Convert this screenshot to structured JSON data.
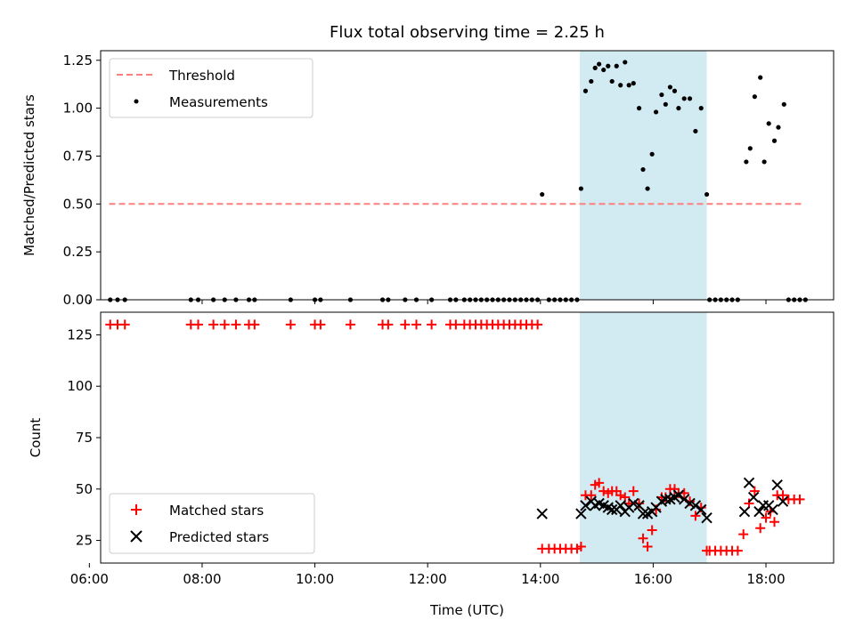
{
  "chart_data": [
    {
      "type": "scatter",
      "title": "Flux total observing time = 2.25 h",
      "xlabel": "",
      "ylabel": "Matched/Predicted stars",
      "xlim": [
        6.2,
        19.2
      ],
      "ylim": [
        0,
        1.3
      ],
      "yticks": [
        0,
        0.25,
        0.5,
        0.75,
        1.0,
        1.25
      ],
      "ytick_labels": [
        "0.00",
        "0.25",
        "0.50",
        "0.75",
        "1.00",
        "1.25"
      ],
      "shaded_span": [
        14.7,
        16.95
      ],
      "shade_color": "#add8e6",
      "legend": {
        "placement": "upper-left",
        "entries": [
          "Threshold",
          "Measurements"
        ]
      },
      "series": [
        {
          "name": "Threshold",
          "kind": "dashed-line",
          "color": "#ff7f7f",
          "x": [
            6.35,
            18.65
          ],
          "y": [
            0.5,
            0.5
          ]
        },
        {
          "name": "Measurements",
          "kind": "points",
          "color": "#000000",
          "points": [
            [
              6.37,
              0
            ],
            [
              6.5,
              0
            ],
            [
              6.63,
              0
            ],
            [
              7.8,
              0
            ],
            [
              7.93,
              0
            ],
            [
              8.2,
              0
            ],
            [
              8.4,
              0
            ],
            [
              8.6,
              0
            ],
            [
              8.83,
              0
            ],
            [
              8.93,
              0
            ],
            [
              9.57,
              0
            ],
            [
              10.0,
              0
            ],
            [
              10.1,
              0
            ],
            [
              10.63,
              0
            ],
            [
              11.2,
              0
            ],
            [
              11.3,
              0
            ],
            [
              11.6,
              0
            ],
            [
              11.8,
              0
            ],
            [
              12.07,
              0
            ],
            [
              12.4,
              0
            ],
            [
              12.5,
              0
            ],
            [
              12.65,
              0
            ],
            [
              12.75,
              0
            ],
            [
              12.85,
              0
            ],
            [
              12.95,
              0
            ],
            [
              13.05,
              0
            ],
            [
              13.15,
              0
            ],
            [
              13.25,
              0
            ],
            [
              13.35,
              0
            ],
            [
              13.45,
              0
            ],
            [
              13.55,
              0
            ],
            [
              13.65,
              0
            ],
            [
              13.75,
              0
            ],
            [
              13.85,
              0
            ],
            [
              13.95,
              0
            ],
            [
              14.03,
              0.55
            ],
            [
              14.15,
              0
            ],
            [
              14.25,
              0
            ],
            [
              14.35,
              0
            ],
            [
              14.45,
              0
            ],
            [
              14.55,
              0
            ],
            [
              14.65,
              0
            ],
            [
              14.72,
              0.58
            ],
            [
              14.8,
              1.09
            ],
            [
              14.9,
              1.14
            ],
            [
              14.97,
              1.21
            ],
            [
              15.04,
              1.23
            ],
            [
              15.12,
              1.2
            ],
            [
              15.2,
              1.22
            ],
            [
              15.27,
              1.14
            ],
            [
              15.35,
              1.22
            ],
            [
              15.42,
              1.12
            ],
            [
              15.5,
              1.24
            ],
            [
              15.57,
              1.12
            ],
            [
              15.65,
              1.13
            ],
            [
              15.75,
              1.0
            ],
            [
              15.82,
              0.68
            ],
            [
              15.9,
              0.58
            ],
            [
              15.98,
              0.76
            ],
            [
              16.05,
              0.98
            ],
            [
              16.15,
              1.07
            ],
            [
              16.22,
              1.02
            ],
            [
              16.3,
              1.11
            ],
            [
              16.38,
              1.09
            ],
            [
              16.45,
              1.0
            ],
            [
              16.55,
              1.05
            ],
            [
              16.65,
              1.05
            ],
            [
              16.75,
              0.88
            ],
            [
              16.85,
              1.0
            ],
            [
              16.95,
              0.55
            ],
            [
              17.0,
              0
            ],
            [
              17.1,
              0
            ],
            [
              17.2,
              0
            ],
            [
              17.3,
              0
            ],
            [
              17.4,
              0
            ],
            [
              17.5,
              0
            ],
            [
              17.65,
              0.72
            ],
            [
              17.72,
              0.79
            ],
            [
              17.8,
              1.06
            ],
            [
              17.9,
              1.16
            ],
            [
              17.97,
              0.72
            ],
            [
              18.05,
              0.92
            ],
            [
              18.15,
              0.83
            ],
            [
              18.22,
              0.9
            ],
            [
              18.32,
              1.02
            ],
            [
              18.4,
              0
            ],
            [
              18.5,
              0
            ],
            [
              18.6,
              0
            ],
            [
              18.7,
              0
            ]
          ]
        }
      ]
    },
    {
      "type": "scatter",
      "title": "",
      "xlabel": "Time (UTC)",
      "ylabel": "Count",
      "xlim": [
        6.2,
        19.2
      ],
      "ylim": [
        14,
        136
      ],
      "xticks": [
        6,
        8,
        10,
        12,
        14,
        16,
        18
      ],
      "xtick_labels": [
        "06:00",
        "08:00",
        "10:00",
        "12:00",
        "14:00",
        "16:00",
        "18:00"
      ],
      "yticks": [
        25,
        50,
        75,
        100,
        125
      ],
      "ytick_labels": [
        "25",
        "50",
        "75",
        "100",
        "125"
      ],
      "shaded_span": [
        14.7,
        16.95
      ],
      "shade_color": "#add8e6",
      "legend": {
        "placement": "lower-left",
        "entries": [
          "Matched stars",
          "Predicted stars"
        ]
      },
      "series": [
        {
          "name": "Matched stars",
          "kind": "plus",
          "color": "#ff0000",
          "points": [
            [
              6.37,
              130
            ],
            [
              6.5,
              130
            ],
            [
              6.63,
              130
            ],
            [
              7.8,
              130
            ],
            [
              7.93,
              130
            ],
            [
              8.2,
              130
            ],
            [
              8.4,
              130
            ],
            [
              8.6,
              130
            ],
            [
              8.83,
              130
            ],
            [
              8.93,
              130
            ],
            [
              9.57,
              130
            ],
            [
              10.0,
              130
            ],
            [
              10.1,
              130
            ],
            [
              10.63,
              130
            ],
            [
              11.2,
              130
            ],
            [
              11.3,
              130
            ],
            [
              11.6,
              130
            ],
            [
              11.8,
              130
            ],
            [
              12.07,
              130
            ],
            [
              12.4,
              130
            ],
            [
              12.5,
              130
            ],
            [
              12.65,
              130
            ],
            [
              12.75,
              130
            ],
            [
              12.85,
              130
            ],
            [
              12.95,
              130
            ],
            [
              13.05,
              130
            ],
            [
              13.15,
              130
            ],
            [
              13.25,
              130
            ],
            [
              13.35,
              130
            ],
            [
              13.45,
              130
            ],
            [
              13.55,
              130
            ],
            [
              13.65,
              130
            ],
            [
              13.75,
              130
            ],
            [
              13.85,
              130
            ],
            [
              13.95,
              130
            ],
            [
              14.03,
              21
            ],
            [
              14.15,
              21
            ],
            [
              14.25,
              21
            ],
            [
              14.35,
              21
            ],
            [
              14.45,
              21
            ],
            [
              14.55,
              21
            ],
            [
              14.65,
              21
            ],
            [
              14.72,
              22
            ],
            [
              14.8,
              47
            ],
            [
              14.9,
              47
            ],
            [
              14.97,
              52
            ],
            [
              15.04,
              53
            ],
            [
              15.12,
              49
            ],
            [
              15.2,
              48
            ],
            [
              15.27,
              49
            ],
            [
              15.35,
              49
            ],
            [
              15.42,
              47
            ],
            [
              15.5,
              46
            ],
            [
              15.57,
              43
            ],
            [
              15.65,
              49
            ],
            [
              15.75,
              43
            ],
            [
              15.82,
              26
            ],
            [
              15.9,
              22
            ],
            [
              15.98,
              30
            ],
            [
              16.05,
              40
            ],
            [
              16.15,
              46
            ],
            [
              16.22,
              46
            ],
            [
              16.3,
              50
            ],
            [
              16.38,
              50
            ],
            [
              16.45,
              48
            ],
            [
              16.55,
              48
            ],
            [
              16.65,
              44
            ],
            [
              16.75,
              37
            ],
            [
              16.85,
              41
            ],
            [
              16.95,
              20
            ],
            [
              17.0,
              20
            ],
            [
              17.1,
              20
            ],
            [
              17.2,
              20
            ],
            [
              17.3,
              20
            ],
            [
              17.4,
              20
            ],
            [
              17.5,
              20
            ],
            [
              17.6,
              28
            ],
            [
              17.7,
              43
            ],
            [
              17.8,
              49
            ],
            [
              17.9,
              31
            ],
            [
              18.0,
              36
            ],
            [
              18.08,
              39
            ],
            [
              18.15,
              34
            ],
            [
              18.2,
              47
            ],
            [
              18.3,
              47
            ],
            [
              18.4,
              45
            ],
            [
              18.5,
              45
            ],
            [
              18.6,
              45
            ]
          ]
        },
        {
          "name": "Predicted stars",
          "kind": "cross",
          "color": "#000000",
          "points": [
            [
              14.03,
              38
            ],
            [
              14.72,
              38
            ],
            [
              14.8,
              42
            ],
            [
              14.9,
              44
            ],
            [
              14.97,
              42
            ],
            [
              15.04,
              43
            ],
            [
              15.12,
              42
            ],
            [
              15.2,
              41
            ],
            [
              15.27,
              40
            ],
            [
              15.35,
              40
            ],
            [
              15.42,
              42
            ],
            [
              15.5,
              39
            ],
            [
              15.57,
              41
            ],
            [
              15.65,
              43
            ],
            [
              15.75,
              42
            ],
            [
              15.82,
              38
            ],
            [
              15.9,
              38
            ],
            [
              15.98,
              39
            ],
            [
              16.05,
              41
            ],
            [
              16.15,
              44
            ],
            [
              16.22,
              45
            ],
            [
              16.3,
              45
            ],
            [
              16.38,
              46
            ],
            [
              16.45,
              47
            ],
            [
              16.55,
              45
            ],
            [
              16.65,
              43
            ],
            [
              16.75,
              42
            ],
            [
              16.85,
              40
            ],
            [
              16.95,
              36
            ],
            [
              17.62,
              39
            ],
            [
              17.7,
              53
            ],
            [
              17.78,
              46
            ],
            [
              17.88,
              39
            ],
            [
              17.95,
              42
            ],
            [
              18.05,
              42
            ],
            [
              18.12,
              40
            ],
            [
              18.2,
              52
            ],
            [
              18.3,
              44
            ]
          ]
        }
      ]
    }
  ]
}
